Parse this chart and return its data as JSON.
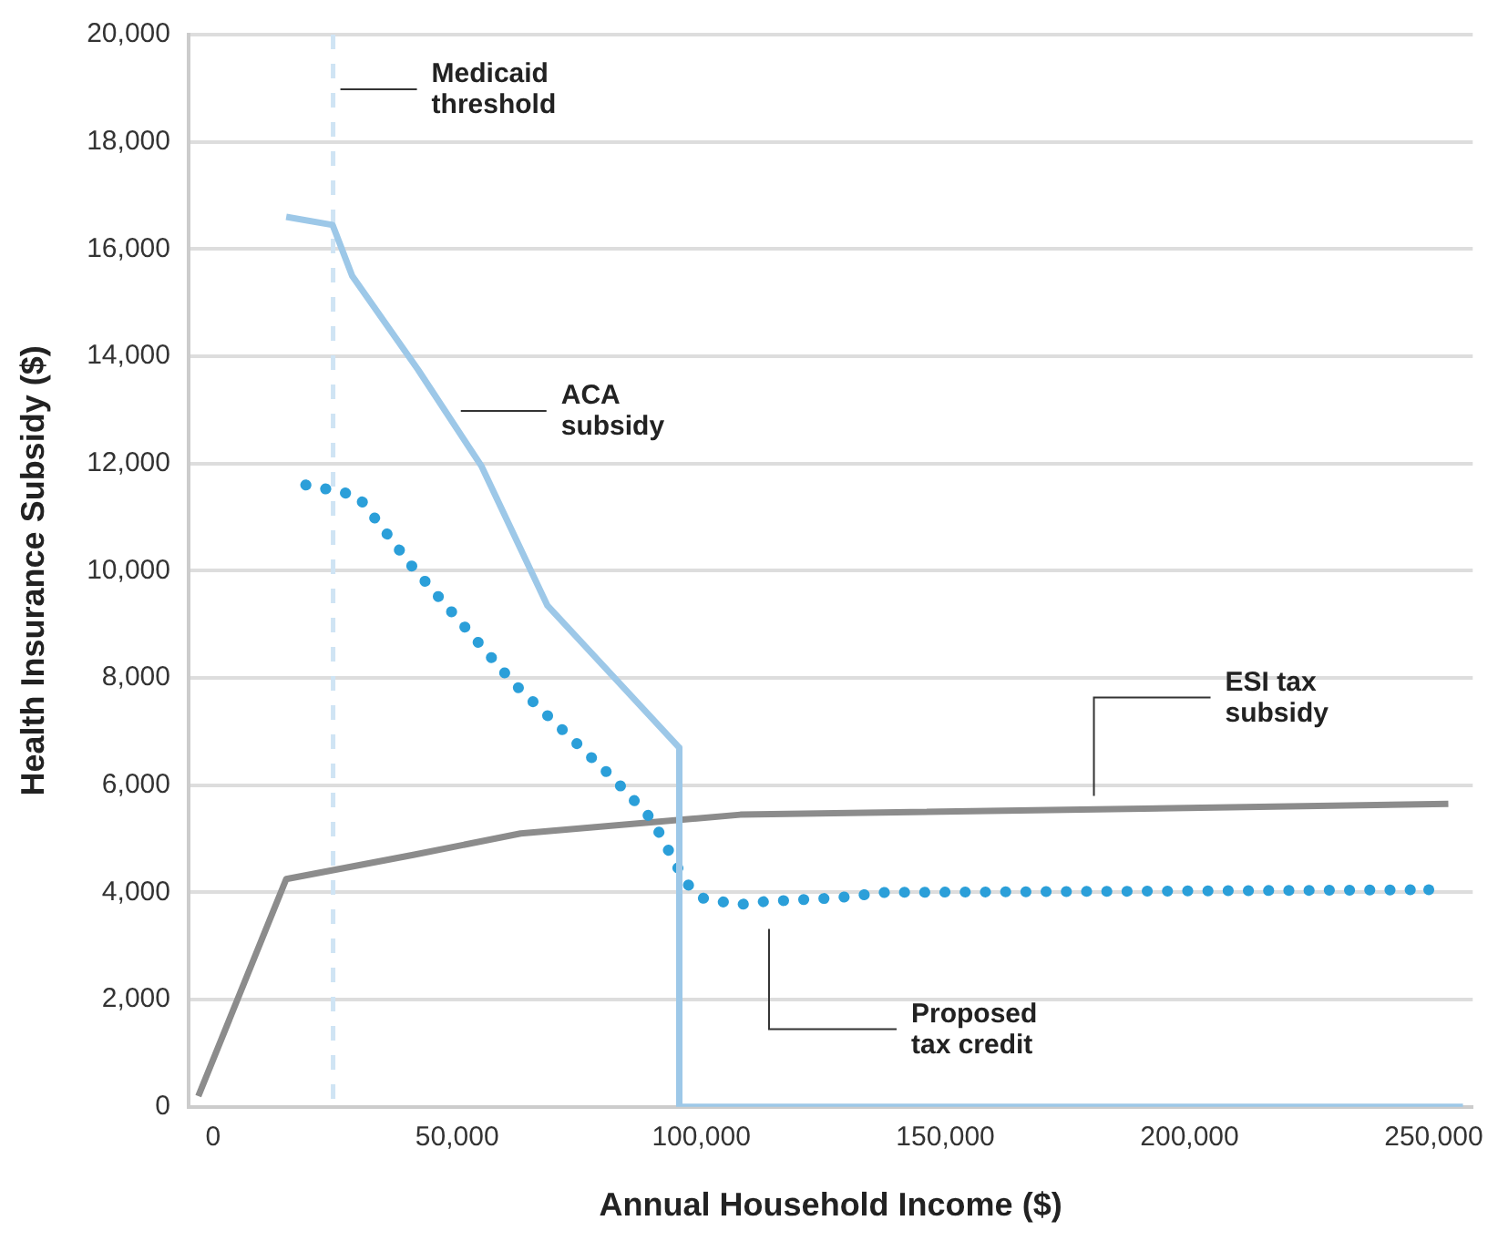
{
  "chart_data": {
    "type": "line",
    "xlabel": "Annual Household Income ($)",
    "ylabel": "Health Insurance Subsidy ($)",
    "xlim": [
      -5000,
      258000
    ],
    "xticks": [
      0,
      {
        "value": 50000,
        "label": "50,000"
      },
      {
        "value": 100000,
        "label": "100,000"
      },
      {
        "value": 150000,
        "label": "150,000"
      },
      {
        "value": 200000,
        "label": "200,000"
      },
      {
        "value": 250000,
        "label": "250,000"
      }
    ],
    "ylim": [
      0,
      20000
    ],
    "yticks": [
      0,
      {
        "value": 2000,
        "label": "2,000"
      },
      {
        "value": 4000,
        "label": "4,000"
      },
      {
        "value": 6000,
        "label": "6,000"
      },
      {
        "value": 8000,
        "label": "8,000"
      },
      {
        "value": 10000,
        "label": "10,000"
      },
      {
        "value": 12000,
        "label": "12,000"
      },
      {
        "value": 14000,
        "label": "14,000"
      },
      {
        "value": 16000,
        "label": "16,000"
      },
      {
        "value": 18000,
        "label": "18,000"
      },
      {
        "value": 20000,
        "label": "20,000"
      }
    ],
    "grid": "y",
    "legend": false,
    "marker": "none",
    "series": [
      {
        "color": "#9dc8e8",
        "line_style": "solid",
        "x": [
          15000,
          24500,
          28500,
          42000,
          55000,
          68500,
          95500,
          95500,
          256000
        ],
        "values": [
          16600,
          16450,
          15500,
          13750,
          11950,
          9350,
          6700,
          0,
          0
        ]
      },
      {
        "color": "#2b9fd9",
        "line_style": "dotted",
        "x": [
          19000,
          24600,
          29600,
          40600,
          61600,
          82300,
          90000,
          96700,
          100000,
          107600,
          113000,
          128000,
          137700,
          249000
        ],
        "values": [
          11600,
          11500,
          11400,
          10100,
          7900,
          6100,
          5350,
          4200,
          3900,
          3770,
          3830,
          3900,
          4000,
          4050
        ]
      },
      {
        "color": "#8c8c8c",
        "line_style": "solid",
        "x": [
          -3000,
          15000,
          41000,
          63000,
          108000,
          253000
        ],
        "values": [
          200,
          4250,
          4700,
          5100,
          5450,
          5650
        ]
      }
    ],
    "ref_lines": [
      {
        "axis": "x",
        "value": 24600,
        "label": "Medicaid threshold",
        "color": "#cfe4f4",
        "line_style": "dashed"
      }
    ],
    "annotations": [
      "ACA subsidy",
      "ESI tax subsidy",
      "Proposed tax credit"
    ]
  }
}
